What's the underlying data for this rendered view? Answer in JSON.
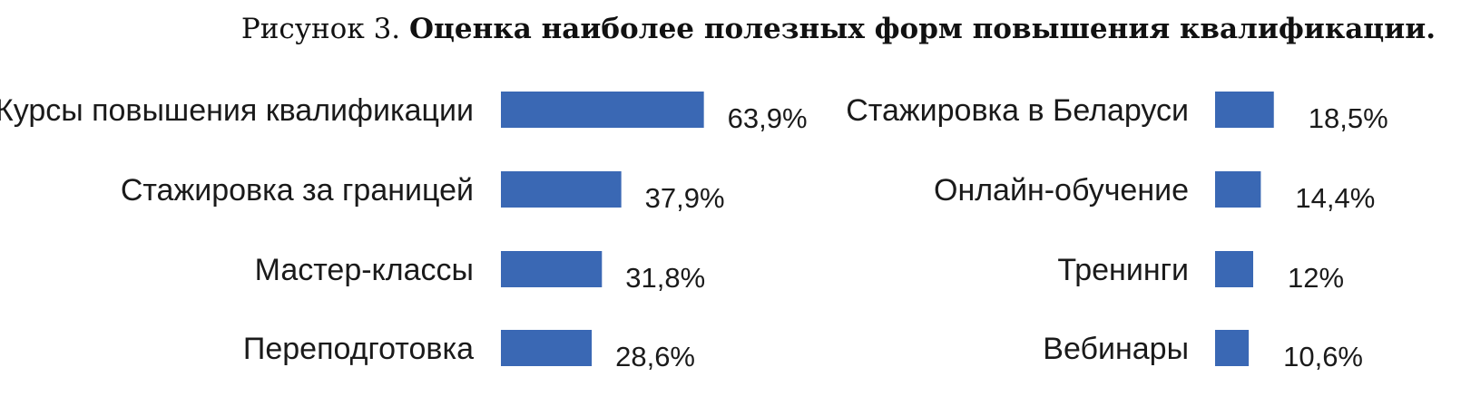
{
  "title": {
    "prefix": "Рисунок 3.",
    "main": "Оценка наиболее полезных форм повышения квалификации."
  },
  "colors": {
    "bar": "#3a68b4",
    "text": "#1a1a1a",
    "background": "#ffffff"
  },
  "chart_data": [
    {
      "type": "bar",
      "orientation": "horizontal",
      "categories": [
        "Курсы повышения квалификации",
        "Стажировка за границей",
        "Мастер-классы",
        "Переподготовка"
      ],
      "values": [
        63.9,
        37.9,
        31.8,
        28.6
      ],
      "value_labels": [
        "63,9%",
        "37,9%",
        "31,8%",
        "28,6%"
      ],
      "unit": "%",
      "grid": false
    },
    {
      "type": "bar",
      "orientation": "horizontal",
      "categories": [
        "Стажировка в Беларуси",
        "Онлайн-обучение",
        "Тренинги",
        "Вебинары"
      ],
      "values": [
        18.5,
        14.4,
        12,
        10.6
      ],
      "value_labels": [
        "18,5%",
        "14,4%",
        "12%",
        "10,6%"
      ],
      "unit": "%",
      "grid": false
    }
  ]
}
